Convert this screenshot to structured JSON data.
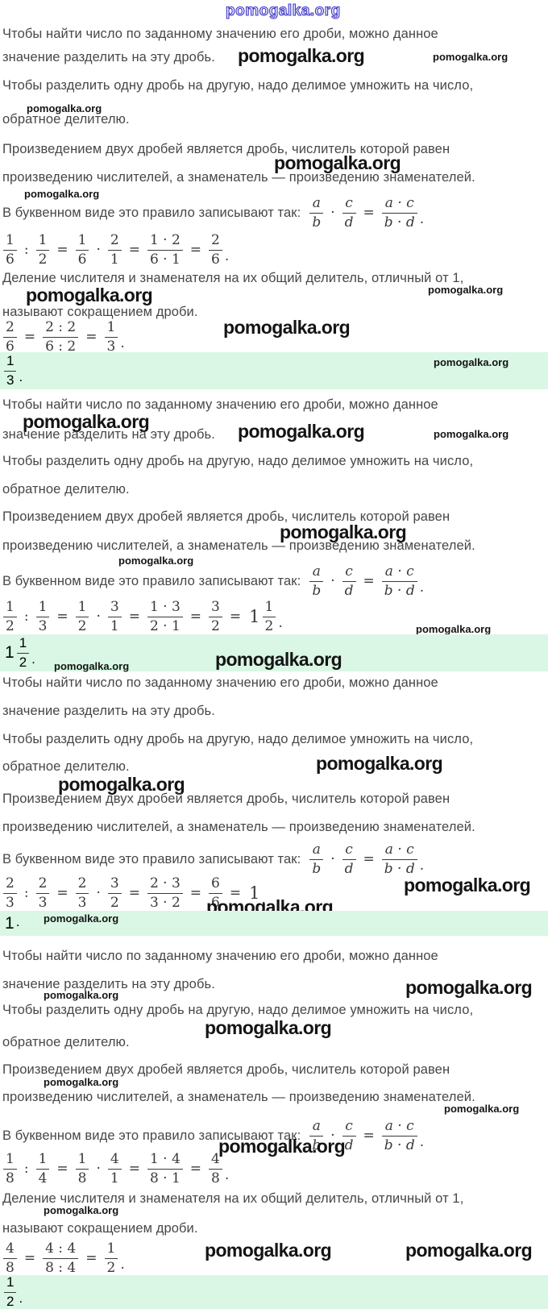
{
  "watermark": {
    "text": "pomogalka.org"
  },
  "colors": {
    "highlight_green": "#d9f7e4",
    "body_text": "#474747",
    "math_text": "#3a3a3a",
    "watermark_black": "#141414",
    "watermark_outline_blue": "#413bc7"
  },
  "rules": {
    "find_line1": "Чтобы найти число по заданному значению его дроби, можно данное",
    "find_line2": "значение разделить на эту дробь.",
    "divide_line1": "Чтобы разделить одну дробь на другую, надо делимое умножить на число,",
    "divide_line2": "обратное делителю.",
    "product_line1": "Произведением двух дробей является дробь, числитель которой равен",
    "product_line2": "произведению числителей, а знаменатель — произведению знаменателей.",
    "letter_intro": "В буквенном виде это правило записывают так:",
    "reduce_line1": "Деление числителя и знаменателя на их общий делитель, отличный от 1,",
    "reduce_line2": "называют сокращением дроби."
  },
  "math": {
    "letter_formula": [
      {
        "f": [
          "a",
          "b"
        ],
        "i": 1
      },
      {
        "o": "·"
      },
      {
        "f": [
          "c",
          "d"
        ],
        "i": 1
      },
      {
        "o": "="
      },
      {
        "f": [
          "a · c",
          "b · d"
        ],
        "i": 1
      },
      {
        "p": "."
      }
    ],
    "example1": [
      {
        "f": [
          "1",
          "6"
        ]
      },
      {
        "o": ":"
      },
      {
        "f": [
          "1",
          "2"
        ]
      },
      {
        "o": "="
      },
      {
        "f": [
          "1",
          "6"
        ]
      },
      {
        "o": "·"
      },
      {
        "f": [
          "2",
          "1"
        ]
      },
      {
        "o": "="
      },
      {
        "f": [
          "1 · 2",
          "6 · 1"
        ]
      },
      {
        "o": "="
      },
      {
        "f": [
          "2",
          "6"
        ]
      },
      {
        "p": "."
      }
    ],
    "simplify1": [
      {
        "f": [
          "2",
          "6"
        ]
      },
      {
        "o": "="
      },
      {
        "f": [
          "2 : 2",
          "6 : 2"
        ]
      },
      {
        "o": "="
      },
      {
        "f": [
          "1",
          "3"
        ]
      },
      {
        "p": "."
      }
    ],
    "answer1": [
      {
        "f": [
          "1",
          "3"
        ]
      },
      {
        "p": "."
      }
    ],
    "example2": [
      {
        "f": [
          "1",
          "2"
        ]
      },
      {
        "o": ":"
      },
      {
        "f": [
          "1",
          "3"
        ]
      },
      {
        "o": "="
      },
      {
        "f": [
          "1",
          "2"
        ]
      },
      {
        "o": "·"
      },
      {
        "f": [
          "3",
          "1"
        ]
      },
      {
        "o": "="
      },
      {
        "f": [
          "1 · 3",
          "2 · 1"
        ]
      },
      {
        "o": "="
      },
      {
        "f": [
          "3",
          "2"
        ]
      },
      {
        "o": "="
      },
      {
        "w": "1"
      },
      {
        "f": [
          "1",
          "2"
        ]
      },
      {
        "p": "."
      }
    ],
    "answer2": [
      {
        "w": "1"
      },
      {
        "f": [
          "1",
          "2"
        ]
      },
      {
        "p": "."
      }
    ],
    "example3": [
      {
        "f": [
          "2",
          "3"
        ]
      },
      {
        "o": ":"
      },
      {
        "f": [
          "2",
          "3"
        ]
      },
      {
        "o": "="
      },
      {
        "f": [
          "2",
          "3"
        ]
      },
      {
        "o": "·"
      },
      {
        "f": [
          "3",
          "2"
        ]
      },
      {
        "o": "="
      },
      {
        "f": [
          "2 · 3",
          "3 · 2"
        ]
      },
      {
        "o": "="
      },
      {
        "f": [
          "6",
          "6"
        ]
      },
      {
        "o": "="
      },
      {
        "w": "1"
      },
      {
        "p": "."
      }
    ],
    "answer3": [
      {
        "w": "1"
      },
      {
        "p": "."
      }
    ],
    "example4": [
      {
        "f": [
          "1",
          "8"
        ]
      },
      {
        "o": ":"
      },
      {
        "f": [
          "1",
          "4"
        ]
      },
      {
        "o": "="
      },
      {
        "f": [
          "1",
          "8"
        ]
      },
      {
        "o": "·"
      },
      {
        "f": [
          "4",
          "1"
        ]
      },
      {
        "o": "="
      },
      {
        "f": [
          "1 · 4",
          "8 · 1"
        ]
      },
      {
        "o": "="
      },
      {
        "f": [
          "4",
          "8"
        ]
      },
      {
        "p": "."
      }
    ],
    "simplify2": [
      {
        "f": [
          "4",
          "8"
        ]
      },
      {
        "o": "="
      },
      {
        "f": [
          "4 : 4",
          "8 : 4"
        ]
      },
      {
        "o": "="
      },
      {
        "f": [
          "1",
          "2"
        ]
      },
      {
        "p": "."
      }
    ],
    "answer4": [
      {
        "f": [
          "1",
          "2"
        ]
      },
      {
        "p": "."
      }
    ]
  }
}
